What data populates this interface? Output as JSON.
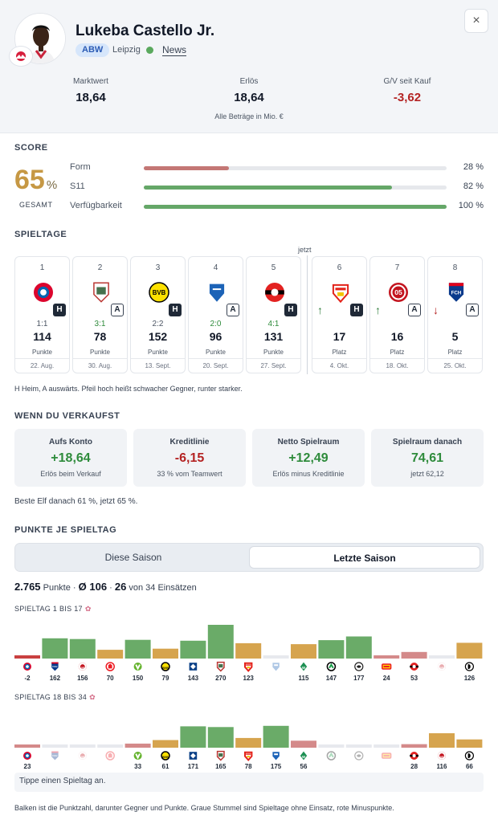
{
  "player": {
    "name": "Lukeba Castello Jr.",
    "position": "ABW",
    "team": "Leipzig",
    "news_label": "News",
    "close_label": "×"
  },
  "stats": [
    {
      "label": "Marktwert",
      "value": "18,64"
    },
    {
      "label": "Erlös",
      "value": "18,64"
    },
    {
      "label": "G/V seit Kauf",
      "value": "-3,62"
    }
  ],
  "stats_note": "Alle Beträge in Mio. €",
  "score": {
    "title": "SCORE",
    "value": "65",
    "unit": "%",
    "sub": "GESAMT",
    "metrics": [
      {
        "label": "Form",
        "value": "28 %",
        "fraction": 0.28,
        "color": "#c47775"
      },
      {
        "label": "S11",
        "value": "82 %",
        "fraction": 0.82,
        "color": "#65a768"
      },
      {
        "label": "Verfügbarkeit",
        "value": "100 %",
        "fraction": 1.0,
        "color": "#65a768"
      }
    ]
  },
  "matchdays": {
    "title": "SPIELTAGE",
    "now_label": "jetzt",
    "items": [
      {
        "num": "1",
        "club": "bayern",
        "ha": "H",
        "result": "1:1",
        "kind": "draw",
        "value": "114",
        "label": "Punkte",
        "date": "22. Aug."
      },
      {
        "num": "2",
        "club": "augsburg",
        "ha": "A",
        "result": "3:1",
        "kind": "win",
        "value": "78",
        "label": "Punkte",
        "date": "30. Aug."
      },
      {
        "num": "3",
        "club": "dortmund",
        "ha": "H",
        "result": "2:2",
        "kind": "draw",
        "value": "152",
        "label": "Punkte",
        "date": "13. Sept."
      },
      {
        "num": "4",
        "club": "hoffenheim",
        "ha": "A",
        "result": "2:0",
        "kind": "win",
        "value": "96",
        "label": "Punkte",
        "date": "20. Sept."
      },
      {
        "num": "5",
        "club": "leverkusen",
        "ha": "H",
        "result": "4:1",
        "kind": "win",
        "value": "131",
        "label": "Punkte",
        "date": "27. Sept."
      },
      {
        "num": "6",
        "club": "stuttgart",
        "ha": "H",
        "arrow": "↑",
        "value": "17",
        "label": "Platz",
        "date": "4. Okt."
      },
      {
        "num": "7",
        "club": "mainz",
        "ha": "A",
        "arrow": "↑",
        "value": "16",
        "label": "Platz",
        "date": "18. Okt."
      },
      {
        "num": "8",
        "club": "heidenheim",
        "ha": "A",
        "arrow": "↓",
        "value": "5",
        "label": "Platz",
        "date": "25. Okt."
      }
    ],
    "note": "H Heim, A auswärts. Pfeil hoch heißt schwacher Gegner, runter starker."
  },
  "sell": {
    "title": "WENN DU VERKAUFST",
    "cards": [
      {
        "label": "Aufs Konto",
        "value": "+18,64",
        "sub": "Erlös beim Verkauf",
        "kind": "pos"
      },
      {
        "label": "Kreditlinie",
        "value": "-6,15",
        "sub": "33 % vom Teamwert",
        "kind": "neg"
      },
      {
        "label": "Netto Spielraum",
        "value": "+12,49",
        "sub": "Erlös minus Kreditlinie",
        "kind": "pos"
      },
      {
        "label": "Spielraum danach",
        "value": "74,61",
        "sub": "jetzt 62,12",
        "kind": "pos"
      }
    ],
    "note": "Beste Elf danach 61 %, jetzt 65 %."
  },
  "points": {
    "title": "PUNKTE JE SPIELTAG",
    "tabs": [
      "Diese Saison",
      "Letzte Saison"
    ],
    "active_tab": 1,
    "summary_total": "2.765",
    "summary_total_label": "Punkte",
    "summary_avg": "Ø 106",
    "summary_games": "26",
    "summary_games_label": "von 34 Einsätzen",
    "row1_title": "SPIELTAG 1 BIS 17",
    "row2_title": "SPIELTAG 18 BIS 34",
    "hint": "Tippe einen Spieltag an.",
    "footer": "Balken ist die Punktzahl, darunter Gegner und Punkte. Graue Stummel sind Spieltage ohne Einsatz, rote Minuspunkte."
  },
  "chart_data": [
    {
      "type": "bar",
      "title": "SPIELTAG 1 BIS 17",
      "categories": [
        "1",
        "2",
        "3",
        "4",
        "5",
        "6",
        "7",
        "8",
        "9",
        "10",
        "11",
        "12",
        "13",
        "14",
        "15",
        "16",
        "17"
      ],
      "values": [
        -2,
        162,
        156,
        70,
        150,
        79,
        143,
        270,
        123,
        null,
        115,
        147,
        177,
        24,
        53,
        null,
        126
      ],
      "labels": [
        "-2",
        "162",
        "156",
        "70",
        "150",
        "79",
        "143",
        "270",
        "123",
        "",
        "115",
        "147",
        "177",
        "24",
        "53",
        "",
        "126"
      ],
      "opponents": [
        "bayern",
        "heidenheim",
        "mainz",
        "koeln",
        "wolfsburg",
        "dortmund",
        "hamburg",
        "augsburg",
        "stuttgart",
        "hoffenheim",
        "bremen",
        "gladbach",
        "frankfurt",
        "union",
        "leverkusen",
        "mainz",
        "freiburg"
      ],
      "colors": {
        "high": "#6aab68",
        "mid": "#d6a44e",
        "low": "#d48a8a",
        "neg": "#c94040",
        "none": "#e7e9ee"
      }
    },
    {
      "type": "bar",
      "title": "SPIELTAG 18 BIS 34",
      "categories": [
        "18",
        "19",
        "20",
        "21",
        "22",
        "23",
        "24",
        "25",
        "26",
        "27",
        "28",
        "29",
        "30",
        "31",
        "32",
        "33",
        "34"
      ],
      "values": [
        23,
        null,
        null,
        null,
        33,
        61,
        171,
        165,
        78,
        175,
        56,
        null,
        null,
        null,
        28,
        116,
        66
      ],
      "labels": [
        "23",
        "",
        "",
        "",
        "33",
        "61",
        "171",
        "165",
        "78",
        "175",
        "56",
        "",
        "",
        "",
        "28",
        "116",
        "66"
      ],
      "opponents": [
        "bayern",
        "heidenheim",
        "mainz",
        "koeln",
        "wolfsburg",
        "dortmund",
        "hamburg",
        "augsburg",
        "stuttgart",
        "hoffenheim",
        "bremen",
        "gladbach",
        "frankfurt",
        "union",
        "leverkusen",
        "mainz",
        "freiburg"
      ],
      "colors": {
        "high": "#6aab68",
        "mid": "#d6a44e",
        "low": "#d48a8a",
        "neg": "#c94040",
        "none": "#e7e9ee"
      }
    }
  ]
}
